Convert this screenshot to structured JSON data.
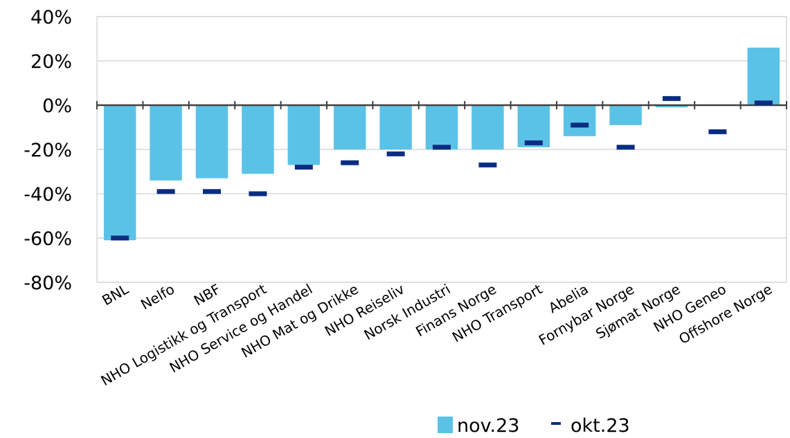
{
  "chart_data": {
    "type": "bar",
    "categories": [
      "BNL",
      "Nelfo",
      "NBF",
      "NHO Logistikk og Transport",
      "NHO Service og Handel",
      "NHO Mat og Drikke",
      "NHO Reiseliv",
      "Norsk Industri",
      "Finans Norge",
      "NHO Transport",
      "Abelia",
      "Fornybar Norge",
      "Sjømat Norge",
      "NHO Geneo",
      "Offshore Norge"
    ],
    "series": [
      {
        "name": "nov.23",
        "type": "bar",
        "color": "#5BC2E7",
        "values": [
          -61,
          -34,
          -33,
          -31,
          -27,
          -20,
          -20,
          -20,
          -20,
          -19,
          -14,
          -9,
          -1,
          0,
          26
        ]
      },
      {
        "name": "okt.23",
        "type": "marker",
        "color": "#0A2D82",
        "values": [
          -60,
          -39,
          -39,
          -40,
          -28,
          -26,
          -22,
          -19,
          -27,
          -17,
          -9,
          -19,
          3,
          -12,
          1
        ]
      }
    ],
    "ylim": [
      -80,
      40
    ],
    "yticks": [
      "40%",
      "20%",
      "0%",
      "-20%",
      "-40%",
      "-60%",
      "-80%"
    ],
    "ytick_values": [
      40,
      20,
      0,
      -20,
      -40,
      -60,
      -80
    ],
    "grid": true,
    "legend_position": "bottom-right",
    "title": "",
    "xlabel": "",
    "ylabel": ""
  }
}
